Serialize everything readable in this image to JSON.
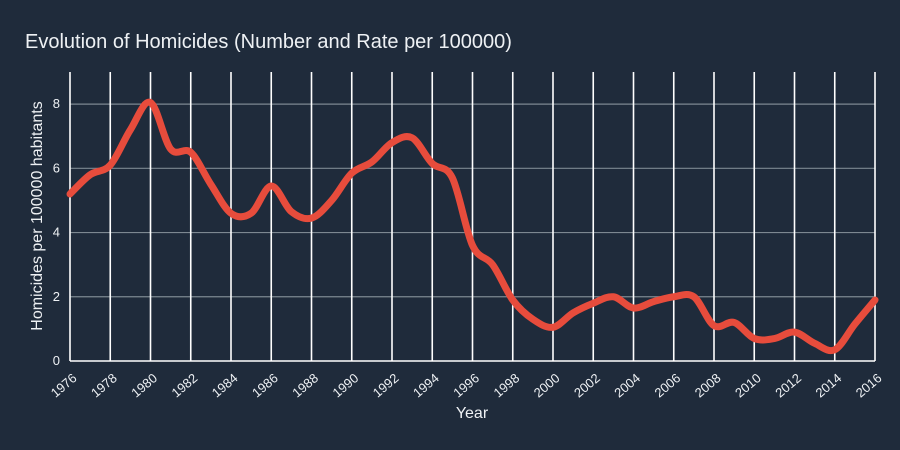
{
  "chart_data": {
    "type": "line",
    "title": "Evolution of Homicides (Number and Rate per 100000)",
    "xlabel": "Year",
    "ylabel": "Homicides per 100000 habitants",
    "xlim": [
      1976,
      2016
    ],
    "ylim": [
      0,
      9
    ],
    "grid": true,
    "x_ticks": [
      1976,
      1978,
      1980,
      1982,
      1984,
      1986,
      1988,
      1990,
      1992,
      1994,
      1996,
      1998,
      2000,
      2002,
      2004,
      2006,
      2008,
      2010,
      2012,
      2014,
      2016
    ],
    "y_ticks": [
      0,
      2,
      4,
      6,
      8
    ],
    "series": [
      {
        "color": "#e74c3c",
        "x": [
          1976,
          1977,
          1978,
          1979,
          1980,
          1981,
          1982,
          1983,
          1984,
          1985,
          1986,
          1987,
          1988,
          1989,
          1990,
          1991,
          1992,
          1993,
          1994,
          1995,
          1996,
          1997,
          1998,
          1999,
          2000,
          2001,
          2002,
          2003,
          2004,
          2005,
          2006,
          2007,
          2008,
          2009,
          2010,
          2011,
          2012,
          2013,
          2014,
          2015,
          2016
        ],
        "y": [
          5.2,
          5.8,
          6.1,
          7.2,
          8.05,
          6.6,
          6.5,
          5.5,
          4.6,
          4.6,
          5.45,
          4.65,
          4.45,
          5.0,
          5.85,
          6.2,
          6.8,
          6.95,
          6.15,
          5.7,
          3.6,
          3.0,
          1.9,
          1.3,
          1.05,
          1.5,
          1.8,
          2.0,
          1.65,
          1.85,
          2.0,
          2.0,
          1.1,
          1.2,
          0.7,
          0.7,
          0.9,
          0.55,
          0.35,
          1.15,
          1.9
        ]
      }
    ]
  },
  "colors": {
    "background": "#1f2b3b",
    "grid": "#7d8891",
    "vertical_lines": "#ffffff",
    "line": "#e74c3c",
    "text": "#eef1f4"
  }
}
